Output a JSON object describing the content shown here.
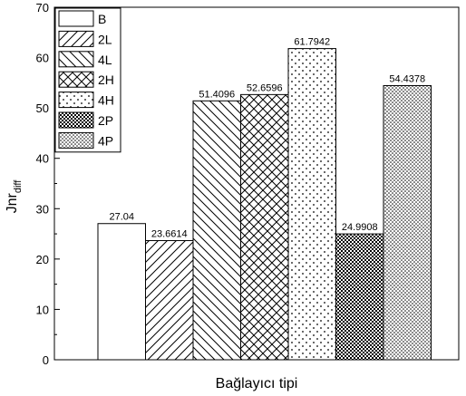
{
  "chart_data": {
    "type": "bar",
    "categories": [
      "B",
      "2L",
      "4L",
      "2H",
      "4H",
      "2P",
      "4P"
    ],
    "values": [
      27.04,
      23.6614,
      51.4096,
      52.6596,
      61.7942,
      24.9908,
      54.4378
    ],
    "data_labels": [
      "27.04",
      "23.6614",
      "51.4096",
      "52.6596",
      "61.7942",
      "24.9908",
      "54.4378"
    ],
    "patterns": [
      "none",
      "diag-fwd",
      "diag-back",
      "crosshatch",
      "dots-sparse",
      "dense-check",
      "dots-dense"
    ],
    "xlabel": "Bağlayıcı tipi",
    "ylabel": {
      "main": "Jnr",
      "sub": "diff"
    },
    "ylim": [
      0,
      70
    ],
    "yticks": [
      "0",
      "10",
      "20",
      "30",
      "40",
      "50",
      "60",
      "70"
    ],
    "legend": {
      "placement": "top-left",
      "entries": [
        "B",
        "2L",
        "4L",
        "2H",
        "4H",
        "2P",
        "4P"
      ]
    },
    "grid": false
  }
}
